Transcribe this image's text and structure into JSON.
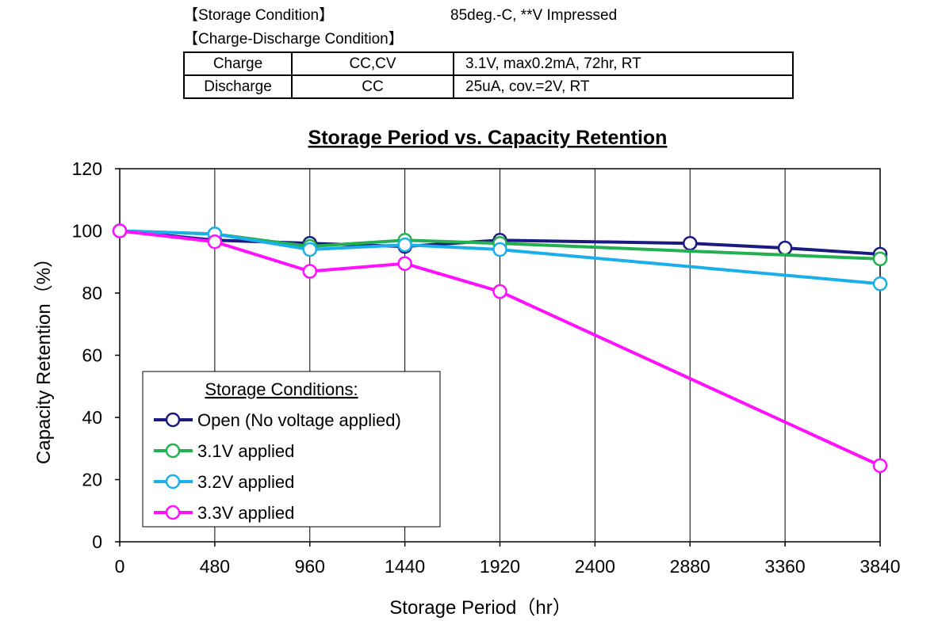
{
  "conditions": {
    "storage_label": "【Storage Condition】",
    "storage_value": "85deg.-C, **V Impressed",
    "cd_label": "【Charge-Discharge Condition】",
    "rows": [
      {
        "mode": "Charge",
        "method": "CC,CV",
        "detail": "3.1V,  max0.2mA,  72hr,   RT"
      },
      {
        "mode": "Discharge",
        "method": "CC",
        "detail": "25uA,  cov.=2V,   RT"
      }
    ]
  },
  "chart_data": {
    "type": "line",
    "title": "Storage Period vs. Capacity Retention",
    "xlabel": "Storage Period（hr）",
    "ylabel": "Capacity Retention（%）",
    "xlim": [
      0,
      3840
    ],
    "ylim": [
      0,
      120
    ],
    "x_ticks": [
      0,
      480,
      960,
      1440,
      1920,
      2400,
      2880,
      3360,
      3840
    ],
    "y_ticks": [
      0,
      20,
      40,
      60,
      80,
      100,
      120
    ],
    "grid": "vertical",
    "legend": {
      "title": "Storage Conditions:",
      "placement": "lower-left"
    },
    "series": [
      {
        "name": "Open (No voltage applied)",
        "color": "#1a1a80",
        "x": [
          0,
          480,
          960,
          1440,
          1920,
          2880,
          3360,
          3840
        ],
        "y": [
          100,
          97,
          96,
          95,
          97,
          96,
          94.5,
          92.5
        ]
      },
      {
        "name": "3.1V applied",
        "color": "#22b050",
        "x": [
          0,
          480,
          960,
          1440,
          1920,
          3840
        ],
        "y": [
          100,
          99,
          95,
          97,
          96,
          91
        ]
      },
      {
        "name": "3.2V applied",
        "color": "#1aaeea",
        "x": [
          0,
          480,
          960,
          1440,
          1920,
          3840
        ],
        "y": [
          100,
          99,
          94,
          95.5,
          94,
          83
        ]
      },
      {
        "name": "3.3V applied",
        "color": "#ff10ff",
        "x": [
          0,
          480,
          960,
          1440,
          1920,
          3840
        ],
        "y": [
          100,
          96.5,
          87,
          89.5,
          80.5,
          24.5
        ]
      }
    ]
  }
}
